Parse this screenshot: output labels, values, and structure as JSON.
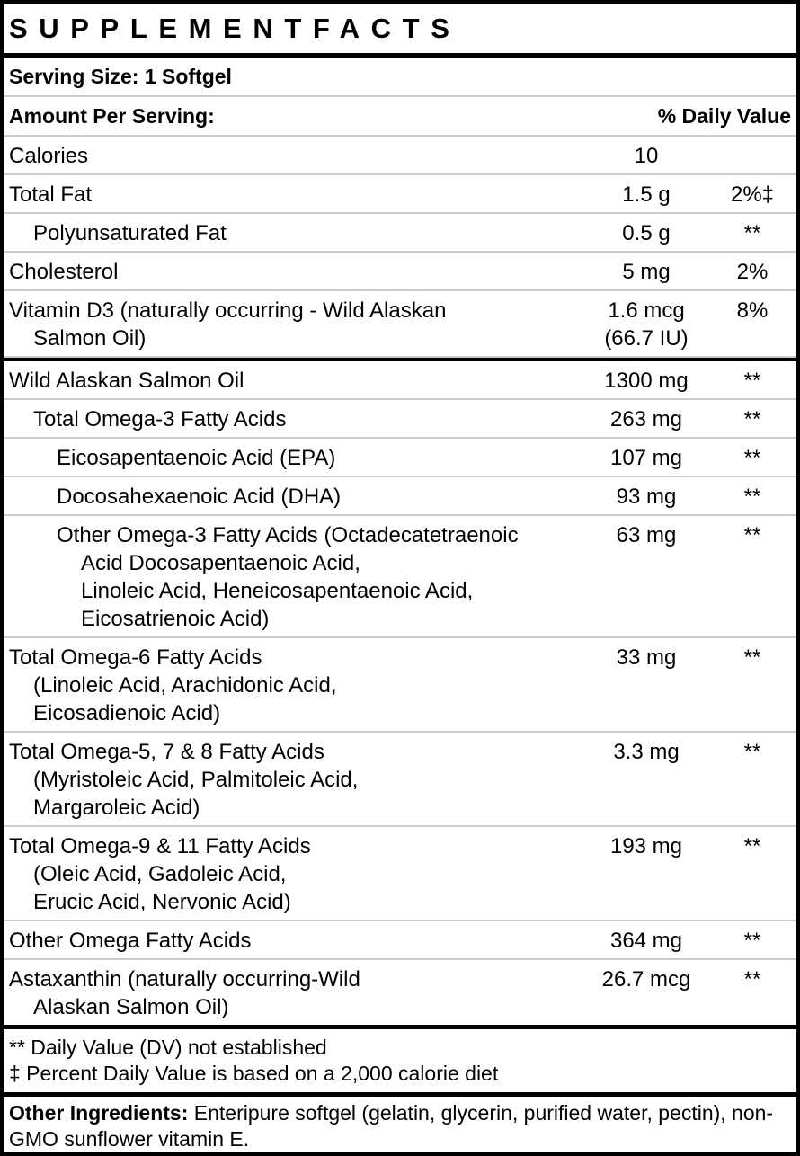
{
  "title": "SUPPLEMENTFACTS",
  "serving_size": "Serving Size: 1 Softgel",
  "header": [
    "Amount Per Serving:",
    "% Daily Value"
  ],
  "rows": [
    {
      "name": [
        "Calories"
      ],
      "amount": [
        "10"
      ]
    },
    {
      "name": [
        "Total Fat"
      ],
      "amount": [
        "1.5 g"
      ],
      "dv": "2%‡"
    },
    {
      "name": [
        "Polyunsaturated Fat"
      ],
      "amount": [
        "0.5 g"
      ],
      "dv": "**"
    },
    {
      "name": [
        "Cholesterol"
      ],
      "amount": [
        "5 mg"
      ],
      "dv": "2%"
    },
    {
      "name": [
        "Vitamin D3 (naturally occurring - Wild Alaskan",
        "Salmon Oil)"
      ],
      "amount": [
        "1.6 mcg",
        "(66.7 IU)"
      ],
      "dv": "8%"
    },
    {
      "name": [
        "Wild Alaskan Salmon Oil"
      ],
      "amount": [
        "1300 mg"
      ],
      "dv": "**"
    },
    {
      "name": [
        "Total Omega-3 Fatty Acids"
      ],
      "amount": [
        "263 mg"
      ],
      "dv": "**"
    },
    {
      "name": [
        "Eicosapentaenoic Acid (EPA)"
      ],
      "amount": [
        "107 mg"
      ],
      "dv": "**"
    },
    {
      "name": [
        "Docosahexaenoic Acid (DHA)"
      ],
      "amount": [
        "93 mg"
      ],
      "dv": "**"
    },
    {
      "name": [
        "Other Omega-3 Fatty Acids (Octadecatetraenoic",
        "Acid Docosapentaenoic Acid,",
        "Linoleic Acid, Heneicosapentaenoic Acid,",
        "Eicosatrienoic Acid)"
      ],
      "amount": [
        "63 mg"
      ],
      "dv": "**"
    },
    {
      "name": [
        "Total Omega-6 Fatty Acids",
        "(Linoleic Acid, Arachidonic Acid,",
        "Eicosadienoic Acid)"
      ],
      "amount": [
        "33 mg"
      ],
      "dv": "**"
    },
    {
      "name": [
        "Total Omega-5, 7 & 8 Fatty Acids",
        "(Myristoleic Acid, Palmitoleic Acid,",
        "Margaroleic Acid)"
      ],
      "amount": [
        "3.3 mg"
      ],
      "dv": "**"
    },
    {
      "name": [
        "Total Omega-9 & 11 Fatty Acids",
        "(Oleic Acid, Gadoleic Acid,",
        "Erucic Acid, Nervonic Acid)"
      ],
      "amount": [
        "193 mg"
      ],
      "dv": "**"
    },
    {
      "name": [
        "Other Omega Fatty Acids"
      ],
      "amount": [
        "364 mg"
      ],
      "dv": "**"
    },
    {
      "name": [
        "Astaxanthin (naturally occurring-Wild",
        "Alaskan Salmon Oil)"
      ],
      "amount": [
        "26.7 mcg"
      ],
      "dv": "**"
    }
  ],
  "footnotes": [
    "** Daily Value (DV) not established",
    "‡ Percent Daily Value is based on a 2,000 calorie diet"
  ],
  "other_ingredients": {
    "label": "Other Ingredients:",
    "text": "Enteripure softgel (gelatin, glycerin, purified water, pectin), non-GMO sunflower vitamin E."
  }
}
